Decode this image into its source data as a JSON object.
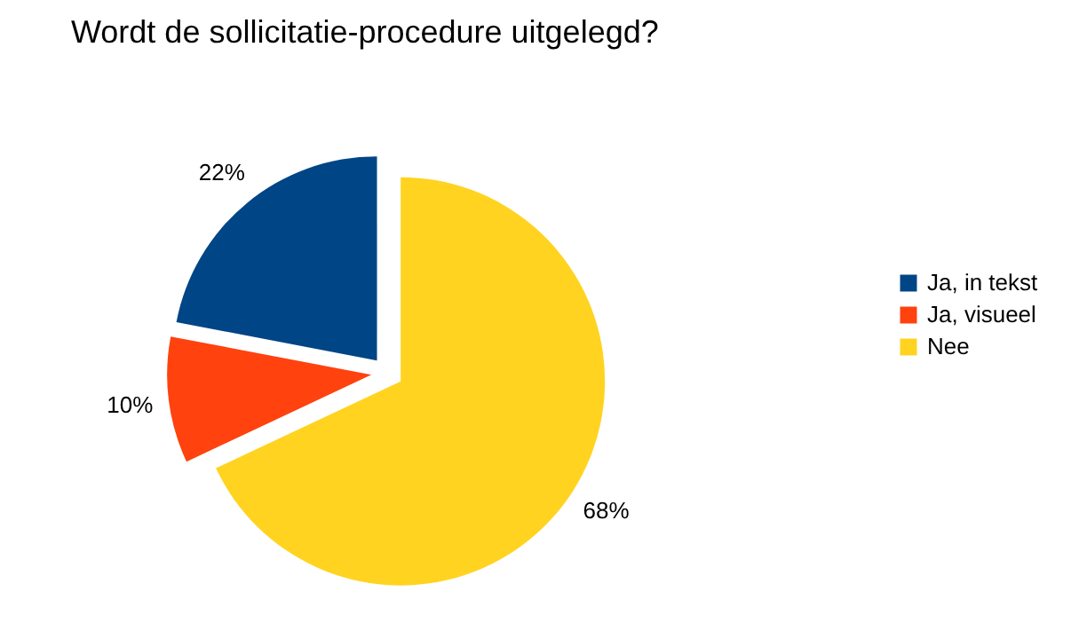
{
  "chart_data": {
    "type": "pie",
    "title": "Wordt de sollicitatie-procedure uitgelegd?",
    "categories": [
      "Ja, in tekst",
      "Ja, visueel",
      "Nee"
    ],
    "values": [
      22,
      10,
      68
    ],
    "colors": [
      "#004586",
      "#ff420e",
      "#ffd320"
    ],
    "value_labels": [
      "22%",
      "10%",
      "68%"
    ],
    "legend": "right"
  }
}
